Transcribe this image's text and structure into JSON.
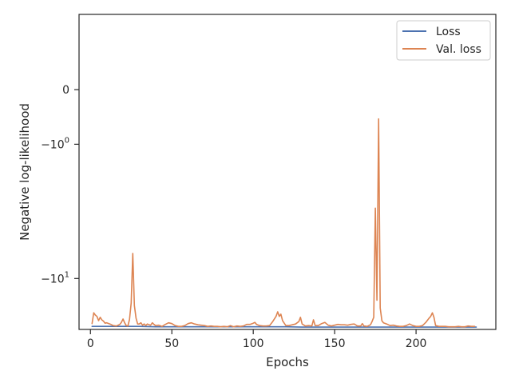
{
  "chart_data": {
    "type": "line",
    "xlabel": "Epochs",
    "ylabel": "Negative log-likelihood",
    "yscale": "symlog",
    "xlim": [
      -7,
      249
    ],
    "ylim": [
      -20,
      1.6
    ],
    "grid": false,
    "legend_position": "upper right",
    "x_ticks": [
      0,
      50,
      100,
      150,
      200
    ],
    "x_tick_labels": [
      "0",
      "50",
      "100",
      "150",
      "200"
    ],
    "y_ticks": [
      0,
      -1,
      -10
    ],
    "y_tick_labels": [
      "0",
      "−10^0",
      "−10^1"
    ],
    "series": [
      {
        "name": "Loss",
        "color": "#4c72b0",
        "x": [
          1,
          10,
          20,
          30,
          40,
          50,
          60,
          70,
          80,
          90,
          100,
          110,
          120,
          130,
          140,
          150,
          160,
          170,
          180,
          190,
          200,
          210,
          220,
          230,
          237
        ],
        "y": [
          -19.2,
          -19.2,
          -19.2,
          -19.2,
          -19.3,
          -19.3,
          -19.3,
          -19.3,
          -19.3,
          -19.3,
          -19.3,
          -19.3,
          -19.3,
          -19.4,
          -19.4,
          -19.4,
          -19.4,
          -19.4,
          -19.4,
          -19.4,
          -19.4,
          -19.4,
          -19.4,
          -19.4,
          -19.4
        ]
      },
      {
        "name": "Val. loss",
        "color": "#dd8452",
        "x": [
          1,
          2,
          3,
          4,
          5,
          6,
          7,
          8,
          9,
          10,
          12,
          14,
          16,
          18,
          19,
          20,
          21,
          22,
          23,
          24,
          25,
          26,
          27,
          28,
          29,
          30,
          31,
          32,
          33,
          34,
          35,
          36,
          37,
          38,
          39,
          40,
          42,
          44,
          46,
          48,
          50,
          52,
          54,
          56,
          58,
          60,
          62,
          64,
          66,
          68,
          70,
          72,
          74,
          76,
          78,
          80,
          82,
          84,
          86,
          88,
          90,
          92,
          94,
          96,
          98,
          100,
          101,
          102,
          104,
          106,
          108,
          110,
          112,
          114,
          115,
          116,
          117,
          118,
          120,
          122,
          124,
          126,
          128,
          129,
          130,
          132,
          134,
          136,
          137,
          138,
          140,
          142,
          144,
          146,
          148,
          150,
          152,
          154,
          156,
          158,
          160,
          162,
          164,
          166,
          167,
          168,
          170,
          172,
          173,
          174,
          175,
          176,
          177,
          178,
          179,
          180,
          182,
          184,
          186,
          188,
          190,
          192,
          194,
          196,
          198,
          200,
          202,
          204,
          206,
          208,
          209,
          210,
          211,
          212,
          214,
          216,
          218,
          220,
          222,
          224,
          226,
          228,
          230,
          232,
          234,
          236
        ],
        "y": [
          -18.5,
          -16.0,
          -16.5,
          -16.8,
          -17.8,
          -17.0,
          -17.6,
          -17.9,
          -18.4,
          -18.3,
          -18.6,
          -19.0,
          -19.1,
          -18.7,
          -18.2,
          -17.4,
          -18.3,
          -19.0,
          -19.1,
          -17.5,
          -14.0,
          -7.0,
          -14.5,
          -17.2,
          -18.6,
          -18.6,
          -18.3,
          -18.9,
          -18.6,
          -19.0,
          -18.6,
          -18.8,
          -18.9,
          -18.3,
          -18.7,
          -19.0,
          -18.9,
          -19.2,
          -18.7,
          -18.3,
          -18.5,
          -19.0,
          -19.2,
          -19.2,
          -19.0,
          -18.5,
          -18.3,
          -18.6,
          -18.8,
          -18.9,
          -19.0,
          -19.2,
          -19.1,
          -19.2,
          -19.2,
          -19.3,
          -19.2,
          -19.3,
          -19.0,
          -19.3,
          -19.1,
          -19.2,
          -19.1,
          -18.7,
          -18.7,
          -18.4,
          -18.2,
          -18.7,
          -19.0,
          -19.1,
          -19.1,
          -19.0,
          -18.0,
          -16.8,
          -15.8,
          -16.8,
          -16.3,
          -17.8,
          -19.0,
          -19.0,
          -18.8,
          -18.6,
          -18.0,
          -17.0,
          -18.6,
          -19.1,
          -19.0,
          -19.1,
          -17.6,
          -19.0,
          -19.0,
          -18.5,
          -18.2,
          -18.9,
          -19.1,
          -18.9,
          -18.7,
          -18.8,
          -18.8,
          -18.9,
          -18.7,
          -18.6,
          -19.1,
          -19.1,
          -18.5,
          -19.1,
          -19.2,
          -18.8,
          -18.0,
          -17.0,
          -3.5,
          -13.5,
          -0.45,
          -15.0,
          -17.8,
          -18.3,
          -18.6,
          -19.0,
          -18.9,
          -19.1,
          -19.2,
          -19.2,
          -19.0,
          -18.6,
          -19.0,
          -19.2,
          -19.2,
          -19.0,
          -18.2,
          -17.2,
          -16.8,
          -16.0,
          -17.0,
          -19.0,
          -19.2,
          -19.2,
          -19.2,
          -19.3,
          -19.3,
          -19.3,
          -19.2,
          -19.3,
          -19.3,
          -19.1,
          -19.2,
          -19.2
        ]
      }
    ]
  }
}
